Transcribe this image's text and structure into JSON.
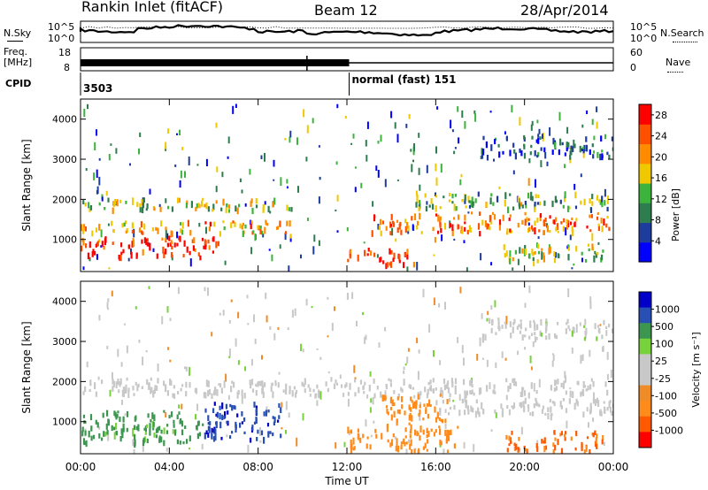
{
  "header": {
    "station": "Rankin Inlet (fitACF)",
    "beam": "Beam 12",
    "date": "28/Apr/2014"
  },
  "left_labels": {
    "nsky": "N.Sky",
    "freq_top": "Freq.",
    "freq_bottom": "[MHz]",
    "cpid": "CPID"
  },
  "right_labels": {
    "nsearch": "N.Search",
    "nave": "Nave"
  },
  "nsky_ticks": {
    "top": "10^5",
    "bottom": "10^0"
  },
  "nsearch_ticks": {
    "top": "10^5",
    "bottom": "10^0"
  },
  "freq_ticks": {
    "top": "18",
    "bottom": "8"
  },
  "nave_ticks": {
    "top": "60",
    "bottom": "0"
  },
  "cpid_segments": [
    {
      "label": "3503",
      "start_hour": 0
    },
    {
      "label": "normal (fast) 151",
      "start_hour": 12.1
    }
  ],
  "colors": {
    "power_scale": [
      "#0000ff",
      "#1e3c9b",
      "#2e7d4f",
      "#3cb43c",
      "#f0c800",
      "#ff8c00",
      "#ff5000",
      "#ff0000"
    ],
    "velocity_scale": [
      "#ff0000",
      "#ff5a00",
      "#ff8c1a",
      "#f08c28",
      "#c8c8c8",
      "#c8c8c8",
      "#78d23c",
      "#3c9650",
      "#2850b4",
      "#0000c8"
    ]
  },
  "chart_data": [
    {
      "type": "heatmap",
      "panel": "power",
      "ylabel": "Slant Range [km]",
      "xlabel": "",
      "xlim": [
        0,
        24
      ],
      "ylim": [
        200,
        4500
      ],
      "x_ticks": [
        "00:00",
        "04:00",
        "08:00",
        "12:00",
        "16:00",
        "20:00",
        "00:00"
      ],
      "y_ticks": [
        1000,
        2000,
        3000,
        4000
      ],
      "colorbar": {
        "label": "Power [dB]",
        "ticks": [
          4,
          8,
          12,
          16,
          20,
          24,
          28
        ],
        "range": [
          0,
          30
        ]
      },
      "features": [
        {
          "t0": 0.0,
          "t1": 6.2,
          "r0": 600,
          "r1": 1100,
          "value": 27
        },
        {
          "t0": 0.0,
          "t1": 9.5,
          "r0": 1200,
          "r1": 1500,
          "value": 20
        },
        {
          "t0": 0.0,
          "t1": 9.5,
          "r0": 1750,
          "r1": 2050,
          "value": 15
        },
        {
          "t0": 12.0,
          "t1": 15.0,
          "r0": 400,
          "r1": 800,
          "value": 27
        },
        {
          "t0": 13.0,
          "t1": 24.0,
          "r0": 1200,
          "r1": 1700,
          "value": 22
        },
        {
          "t0": 15.0,
          "t1": 24.0,
          "r0": 1800,
          "r1": 2200,
          "value": 12
        },
        {
          "t0": 19.0,
          "t1": 23.5,
          "r0": 500,
          "r1": 900,
          "value": 14
        },
        {
          "t0": 18.0,
          "t1": 24.0,
          "r0": 3100,
          "r1": 3600,
          "value": 6
        }
      ]
    },
    {
      "type": "heatmap",
      "panel": "velocity",
      "ylabel": "Slant Range [km]",
      "xlabel": "Time UT",
      "xlim": [
        0,
        24
      ],
      "ylim": [
        200,
        4500
      ],
      "x_ticks": [
        "00:00",
        "04:00",
        "08:00",
        "12:00",
        "16:00",
        "20:00",
        "00:00"
      ],
      "y_ticks": [
        1000,
        2000,
        3000,
        4000
      ],
      "colorbar": {
        "label": "Velocity [m s⁻¹]",
        "ticks": [
          "1000",
          "500",
          "100",
          "25",
          "-25",
          "-100",
          "-500",
          "-1000"
        ]
      },
      "features": [
        {
          "t0": 0.0,
          "t1": 24.0,
          "r0": 1700,
          "r1": 2100,
          "value": 0
        },
        {
          "t0": 0.0,
          "t1": 5.5,
          "r0": 500,
          "r1": 1300,
          "value": 150
        },
        {
          "t0": 5.5,
          "t1": 9.0,
          "r0": 600,
          "r1": 1500,
          "value": 900
        },
        {
          "t0": 12.0,
          "t1": 17.0,
          "r0": 300,
          "r1": 900,
          "value": -300
        },
        {
          "t0": 13.5,
          "t1": 16.5,
          "r0": 900,
          "r1": 1700,
          "value": -250
        },
        {
          "t0": 16.0,
          "t1": 24.0,
          "r0": 1200,
          "r1": 1600,
          "value": 0
        },
        {
          "t0": 19.0,
          "t1": 23.5,
          "r0": 300,
          "r1": 800,
          "value": -600
        },
        {
          "t0": 18.0,
          "t1": 24.0,
          "r0": 3100,
          "r1": 3600,
          "value": 10
        }
      ]
    }
  ]
}
